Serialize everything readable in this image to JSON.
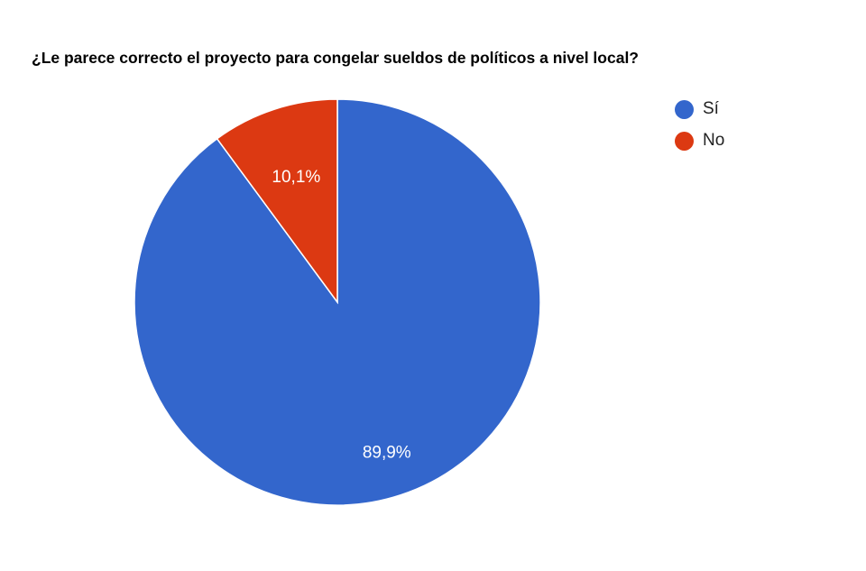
{
  "chart_data": {
    "type": "pie",
    "title": "¿Le parece correcto el proyecto para congelar sueldos de políticos a nivel local?",
    "slices": [
      {
        "label": "Sí",
        "value": 89.9,
        "data_label": "89,9%",
        "color": "#3366cc"
      },
      {
        "label": "No",
        "value": 10.1,
        "data_label": "10,1%",
        "color": "#dc3912"
      }
    ],
    "legend_position": "right"
  }
}
